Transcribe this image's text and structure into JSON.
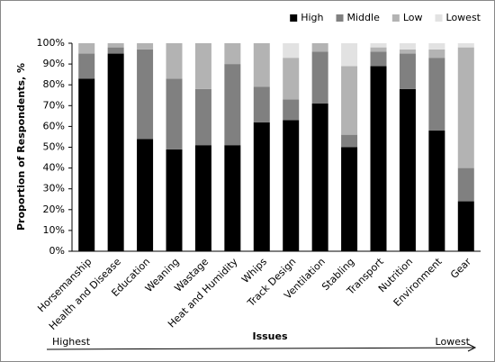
{
  "chart_data": {
    "type": "stacked_bar",
    "categories": [
      "Horsemanship",
      "Health and Disease",
      "Education",
      "Weaning",
      "Wastage",
      "Heat and Humidity",
      "Whips",
      "Track Design",
      "Ventilation",
      "Stabling",
      "Transport",
      "Nutrition",
      "Environment",
      "Gear"
    ],
    "series": [
      {
        "name": "High",
        "color": "#000000",
        "values": [
          83,
          95,
          54,
          49,
          51,
          51,
          62,
          63,
          71,
          50,
          89,
          78,
          58,
          24
        ]
      },
      {
        "name": "Middle",
        "color": "#808080",
        "values": [
          12,
          3,
          43,
          34,
          27,
          39,
          17,
          10,
          25,
          6,
          7,
          17,
          35,
          16
        ]
      },
      {
        "name": "Low",
        "color": "#b3b3b3",
        "values": [
          5,
          2,
          3,
          17,
          22,
          10,
          21,
          20,
          4,
          33,
          2,
          2,
          4,
          58
        ]
      },
      {
        "name": "Lowest",
        "color": "#e2e2e2",
        "values": [
          0,
          0,
          0,
          0,
          0,
          0,
          0,
          7,
          0,
          11,
          2,
          3,
          3,
          2
        ]
      }
    ],
    "ylabel": "Proportion of Respondents, %",
    "xlabel": "Issues",
    "arrow_labels": [
      "Highest",
      "Lowest"
    ],
    "ylim": [
      0,
      100
    ],
    "yticks": [
      {
        "value": 0,
        "label": "0%"
      },
      {
        "value": 10,
        "label": "10%"
      },
      {
        "value": 20,
        "label": "20%"
      },
      {
        "value": 30,
        "label": "30%"
      },
      {
        "value": 40,
        "label": "40%"
      },
      {
        "value": 50,
        "label": "50%"
      },
      {
        "value": 60,
        "label": "60%"
      },
      {
        "value": 70,
        "label": "70%"
      },
      {
        "value": 80,
        "label": "80%"
      },
      {
        "value": 90,
        "label": "90%"
      },
      {
        "value": 100,
        "label": "100%"
      }
    ],
    "legend": "top-right"
  }
}
